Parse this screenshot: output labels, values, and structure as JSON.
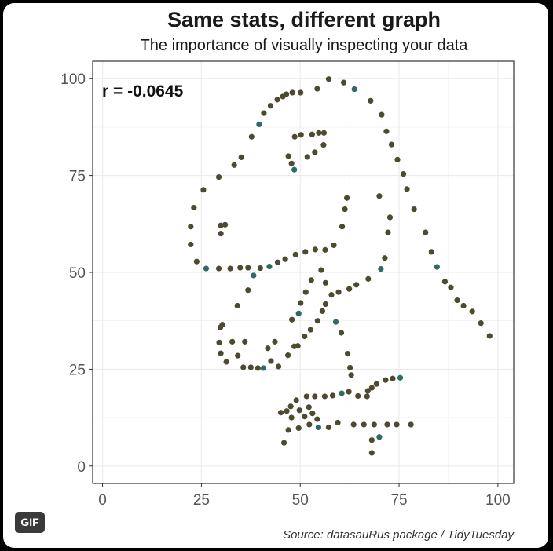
{
  "title": "Same stats, different graph",
  "subtitle": "The importance of visually inspecting your data",
  "caption": "Source: datasauRus package / TidyTuesday",
  "badge": "GIF",
  "colors": {
    "point": "#4d4a30",
    "point_accent": "#2f6a64",
    "grid": "#ebebeb",
    "panel_border": "#333333"
  },
  "chart_data": {
    "type": "scatter",
    "title": "Same stats, different graph",
    "subtitle": "The importance of visually inspecting your data",
    "annotation": "r = -0.0645",
    "xlim": [
      -2.5,
      104
    ],
    "ylim": [
      -4.5,
      104.5
    ],
    "x_ticks": [
      0,
      25,
      50,
      75,
      100
    ],
    "y_ticks": [
      0,
      25,
      50,
      75,
      100
    ],
    "x_tick_labels": [
      "0",
      "25",
      "50",
      "75",
      "100"
    ],
    "y_tick_labels": [
      "0",
      "25",
      "50",
      "75",
      "100"
    ],
    "grid": true,
    "points": [
      [
        22.3,
        61.8
      ],
      [
        23.1,
        66.7
      ],
      [
        22.3,
        57.2
      ],
      [
        23.8,
        52.8
      ],
      [
        26.2,
        51.0
      ],
      [
        25.5,
        71.3
      ],
      [
        29.4,
        74.6
      ],
      [
        29.9,
        62.1
      ],
      [
        31.0,
        62.3
      ],
      [
        29.9,
        60.0
      ],
      [
        29.4,
        51.0
      ],
      [
        32.3,
        51.0
      ],
      [
        33.3,
        77.7
      ],
      [
        35.1,
        79.7
      ],
      [
        37.7,
        85.0
      ],
      [
        39.6,
        88.2
      ],
      [
        40.8,
        91.1
      ],
      [
        42.5,
        93.0
      ],
      [
        44.2,
        94.6
      ],
      [
        45.6,
        95.4
      ],
      [
        46.5,
        96.0
      ],
      [
        48.0,
        96.4
      ],
      [
        50.1,
        96.4
      ],
      [
        54.3,
        97.4
      ],
      [
        57.2,
        99.9
      ],
      [
        61.0,
        99.0
      ],
      [
        63.7,
        97.3
      ],
      [
        67.8,
        94.3
      ],
      [
        70.6,
        90.7
      ],
      [
        71.8,
        86.4
      ],
      [
        73.1,
        83.0
      ],
      [
        74.6,
        79.1
      ],
      [
        76.1,
        75.4
      ],
      [
        77.0,
        71.5
      ],
      [
        78.8,
        66.3
      ],
      [
        81.7,
        60.3
      ],
      [
        83.2,
        55.3
      ],
      [
        84.6,
        51.4
      ],
      [
        86.6,
        47.6
      ],
      [
        88.1,
        46.1
      ],
      [
        89.7,
        42.8
      ],
      [
        91.3,
        41.4
      ],
      [
        93.5,
        39.9
      ],
      [
        95.7,
        36.9
      ],
      [
        97.9,
        33.6
      ],
      [
        48.6,
        85.0
      ],
      [
        47.0,
        80.0
      ],
      [
        47.8,
        78.1
      ],
      [
        48.5,
        76.5
      ],
      [
        50.2,
        85.5
      ],
      [
        51.8,
        79.8
      ],
      [
        53.0,
        85.6
      ],
      [
        54.7,
        86.0
      ],
      [
        56.0,
        86.0
      ],
      [
        55.9,
        82.9
      ],
      [
        53.7,
        81.0
      ],
      [
        34.8,
        51.2
      ],
      [
        36.8,
        51.2
      ],
      [
        39.9,
        51.1
      ],
      [
        42.2,
        51.5
      ],
      [
        44.3,
        52.6
      ],
      [
        46.2,
        53.4
      ],
      [
        48.8,
        54.6
      ],
      [
        51.3,
        55.3
      ],
      [
        53.8,
        55.9
      ],
      [
        56.3,
        55.8
      ],
      [
        58.5,
        57.0
      ],
      [
        60.6,
        61.8
      ],
      [
        61.3,
        66.3
      ],
      [
        61.8,
        69.2
      ],
      [
        38.2,
        49.2
      ],
      [
        36.8,
        45.4
      ],
      [
        34.1,
        41.4
      ],
      [
        30.3,
        36.5
      ],
      [
        29.5,
        31.9
      ],
      [
        29.9,
        29.1
      ],
      [
        31.3,
        26.9
      ],
      [
        34.2,
        28.5
      ],
      [
        35.6,
        25.5
      ],
      [
        37.5,
        25.5
      ],
      [
        39.3,
        25.3
      ],
      [
        40.7,
        25.3
      ],
      [
        42.6,
        27.1
      ],
      [
        44.5,
        25.7
      ],
      [
        41.8,
        30.4
      ],
      [
        43.6,
        32.1
      ],
      [
        36.0,
        32.1
      ],
      [
        32.8,
        32.1
      ],
      [
        29.8,
        35.8
      ],
      [
        46.9,
        28.6
      ],
      [
        48.5,
        30.9
      ],
      [
        47.9,
        37.8
      ],
      [
        49.6,
        39.4
      ],
      [
        50.1,
        42.1
      ],
      [
        51.4,
        44.9
      ],
      [
        52.8,
        48.0
      ],
      [
        55.3,
        50.6
      ],
      [
        56.4,
        47.3
      ],
      [
        57.9,
        44.2
      ],
      [
        59.7,
        44.9
      ],
      [
        62.4,
        45.7
      ],
      [
        64.2,
        46.8
      ],
      [
        67.2,
        48.3
      ],
      [
        70.4,
        50.9
      ],
      [
        71.4,
        53.7
      ],
      [
        72.2,
        60.3
      ],
      [
        72.7,
        64.2
      ],
      [
        70.0,
        69.7
      ],
      [
        49.4,
        31.0
      ],
      [
        51.1,
        33.5
      ],
      [
        52.6,
        35.2
      ],
      [
        54.4,
        37.5
      ],
      [
        55.6,
        40.0
      ],
      [
        56.4,
        41.8
      ],
      [
        59.0,
        37.2
      ],
      [
        60.4,
        34.4
      ],
      [
        62.0,
        29.0
      ],
      [
        62.6,
        25.4
      ],
      [
        62.9,
        23.5
      ],
      [
        64.6,
        18.1
      ],
      [
        67.1,
        19.4
      ],
      [
        68.1,
        20.2
      ],
      [
        69.3,
        21.2
      ],
      [
        71.6,
        22.2
      ],
      [
        73.4,
        22.6
      ],
      [
        75.3,
        22.8
      ],
      [
        45.9,
        6.0
      ],
      [
        47.0,
        9.3
      ],
      [
        45.1,
        13.8
      ],
      [
        46.6,
        14.2
      ],
      [
        47.6,
        15.4
      ],
      [
        49.0,
        17.0
      ],
      [
        51.6,
        18.0
      ],
      [
        53.7,
        18.0
      ],
      [
        56.2,
        18.0
      ],
      [
        58.2,
        18.2
      ],
      [
        60.5,
        18.8
      ],
      [
        62.3,
        19.2
      ],
      [
        66.9,
        18.0
      ],
      [
        47.8,
        12.5
      ],
      [
        49.6,
        9.8
      ],
      [
        51.1,
        12.8
      ],
      [
        53.1,
        13.6
      ],
      [
        54.3,
        12.1
      ],
      [
        52.2,
        15.2
      ],
      [
        49.8,
        14.4
      ],
      [
        52.3,
        10.7
      ],
      [
        54.6,
        10.0
      ],
      [
        57.2,
        10.0
      ],
      [
        59.5,
        11.2
      ],
      [
        63.5,
        10.7
      ],
      [
        66.1,
        10.7
      ],
      [
        68.7,
        10.7
      ],
      [
        72.0,
        10.7
      ],
      [
        74.4,
        10.7
      ],
      [
        78.0,
        10.7
      ],
      [
        68.1,
        6.7
      ],
      [
        68.1,
        3.4
      ],
      [
        70.0,
        7.5
      ]
    ]
  }
}
